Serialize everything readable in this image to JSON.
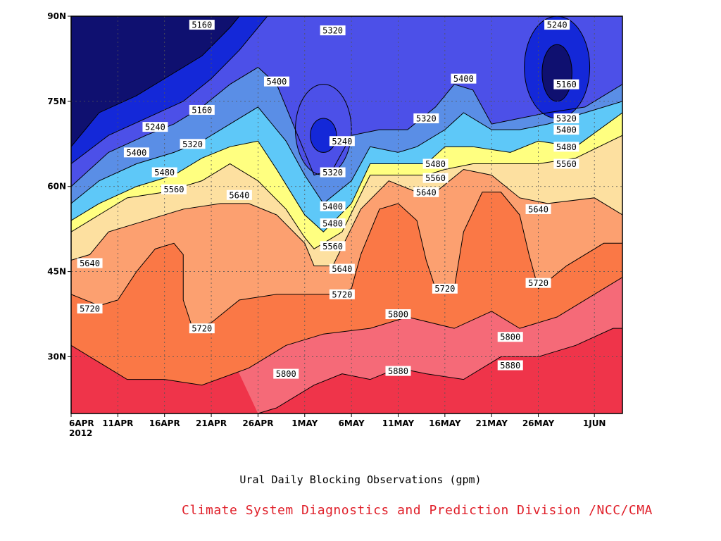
{
  "chart_data": {
    "type": "heatmap",
    "subtype": "filled-contour (time-latitude Hovmoller of 500hPa geopotential height)",
    "title": "Ural Daily Blocking Observations (gpm)",
    "credit": "Climate System Diagnostics and Prediction Division /NCC/CMA",
    "xlabel": "",
    "ylabel": "",
    "x_start_date": "2012-04-06",
    "x_end_date": "2012-06-04",
    "xlim": [
      "2012-04-06",
      "2012-06-04"
    ],
    "ylim": [
      20,
      90
    ],
    "x_ticks": [
      {
        "date": "2012-04-06",
        "label": "6APR",
        "sublabel": "2012"
      },
      {
        "date": "2012-04-11",
        "label": "11APR"
      },
      {
        "date": "2012-04-16",
        "label": "16APR"
      },
      {
        "date": "2012-04-21",
        "label": "21APR"
      },
      {
        "date": "2012-04-26",
        "label": "26APR"
      },
      {
        "date": "2012-05-01",
        "label": "1MAY"
      },
      {
        "date": "2012-05-06",
        "label": "6MAY"
      },
      {
        "date": "2012-05-11",
        "label": "11MAY"
      },
      {
        "date": "2012-05-16",
        "label": "16MAY"
      },
      {
        "date": "2012-05-21",
        "label": "21MAY"
      },
      {
        "date": "2012-05-26",
        "label": "26MAY"
      },
      {
        "date": "2012-06-01",
        "label": "1JUN"
      }
    ],
    "y_ticks": [
      {
        "value": 30,
        "label": "30N"
      },
      {
        "value": 45,
        "label": "45N"
      },
      {
        "value": 60,
        "label": "60N"
      },
      {
        "value": 75,
        "label": "75N"
      },
      {
        "value": 90,
        "label": "90N"
      }
    ],
    "grid": true,
    "levels": [
      5160,
      5240,
      5320,
      5400,
      5480,
      5560,
      5640,
      5720,
      5800,
      5880
    ],
    "band_colors": [
      "#0f1070",
      "#1428d8",
      "#4c50e8",
      "#5a8ee6",
      "#5ec8f8",
      "#ffff80",
      "#fde0a0",
      "#fca070",
      "#fa7846",
      "#f56a78",
      "#ef344a"
    ],
    "contours": [
      {
        "level": 5880,
        "points": [
          [
            "2012-04-26",
            20
          ],
          [
            "2012-04-28",
            21
          ],
          [
            "2012-05-02",
            25
          ],
          [
            "2012-05-05",
            27
          ],
          [
            "2012-05-08",
            26
          ],
          [
            "2012-05-11",
            28
          ],
          [
            "2012-05-14",
            27
          ],
          [
            "2012-05-18",
            26
          ],
          [
            "2012-05-22",
            30
          ],
          [
            "2012-05-26",
            30
          ],
          [
            "2012-05-30",
            32
          ],
          [
            "2012-06-03",
            35
          ],
          [
            "2012-06-04",
            35
          ]
        ]
      },
      {
        "level": 5800,
        "points": [
          [
            "2012-04-06",
            32
          ],
          [
            "2012-04-09",
            29
          ],
          [
            "2012-04-12",
            26
          ],
          [
            "2012-04-16",
            26
          ],
          [
            "2012-04-20",
            25
          ],
          [
            "2012-04-25",
            28
          ],
          [
            "2012-04-29",
            32
          ],
          [
            "2012-05-03",
            34
          ],
          [
            "2012-05-08",
            35
          ],
          [
            "2012-05-12",
            37
          ],
          [
            "2012-05-17",
            35
          ],
          [
            "2012-05-21",
            38
          ],
          [
            "2012-05-24",
            35
          ],
          [
            "2012-05-28",
            37
          ],
          [
            "2012-06-01",
            41
          ],
          [
            "2012-06-04",
            44
          ]
        ]
      },
      {
        "level": 5720,
        "points": [
          [
            "2012-04-06",
            41
          ],
          [
            "2012-04-09",
            39
          ],
          [
            "2012-04-11",
            40
          ],
          [
            "2012-04-13",
            45
          ],
          [
            "2012-04-15",
            49
          ],
          [
            "2012-04-17",
            50
          ],
          [
            "2012-04-18",
            48
          ],
          [
            "2012-04-18",
            40
          ],
          [
            "2012-04-19",
            35
          ],
          [
            "2012-04-21",
            36
          ],
          [
            "2012-04-24",
            40
          ],
          [
            "2012-04-28",
            41
          ],
          [
            "2012-05-01",
            41
          ],
          [
            "2012-05-04",
            41
          ],
          [
            "2012-05-06",
            42
          ],
          [
            "2012-05-07",
            48
          ],
          [
            "2012-05-09",
            56
          ],
          [
            "2012-05-11",
            57
          ],
          [
            "2012-05-13",
            54
          ],
          [
            "2012-05-14",
            47
          ],
          [
            "2012-05-15",
            42
          ],
          [
            "2012-05-17",
            42
          ],
          [
            "2012-05-18",
            52
          ],
          [
            "2012-05-20",
            59
          ],
          [
            "2012-05-22",
            59
          ],
          [
            "2012-05-24",
            55
          ],
          [
            "2012-05-25",
            48
          ],
          [
            "2012-05-26",
            42
          ],
          [
            "2012-05-29",
            46
          ],
          [
            "2012-06-02",
            50
          ],
          [
            "2012-06-04",
            50
          ]
        ]
      },
      {
        "level": 5640,
        "points": [
          [
            "2012-04-06",
            47
          ],
          [
            "2012-04-08",
            48
          ],
          [
            "2012-04-10",
            52
          ],
          [
            "2012-04-14",
            54
          ],
          [
            "2012-04-18",
            56
          ],
          [
            "2012-04-22",
            57
          ],
          [
            "2012-04-25",
            57
          ],
          [
            "2012-04-28",
            55
          ],
          [
            "2012-05-01",
            50
          ],
          [
            "2012-05-02",
            46
          ],
          [
            "2012-05-04",
            46
          ],
          [
            "2012-05-07",
            56
          ],
          [
            "2012-05-10",
            61
          ],
          [
            "2012-05-13",
            59
          ],
          [
            "2012-05-15",
            59
          ],
          [
            "2012-05-18",
            63
          ],
          [
            "2012-05-21",
            62
          ],
          [
            "2012-05-24",
            58
          ],
          [
            "2012-05-27",
            57
          ],
          [
            "2012-06-01",
            58
          ],
          [
            "2012-06-04",
            55
          ]
        ]
      },
      {
        "level": 5560,
        "points": [
          [
            "2012-04-06",
            52
          ],
          [
            "2012-04-09",
            55
          ],
          [
            "2012-04-12",
            58
          ],
          [
            "2012-04-16",
            59
          ],
          [
            "2012-04-20",
            61
          ],
          [
            "2012-04-23",
            64
          ],
          [
            "2012-04-26",
            61
          ],
          [
            "2012-04-29",
            56
          ],
          [
            "2012-05-01",
            51
          ],
          [
            "2012-05-02",
            49
          ],
          [
            "2012-05-05",
            52
          ],
          [
            "2012-05-08",
            62
          ],
          [
            "2012-05-11",
            62
          ],
          [
            "2012-05-14",
            62
          ],
          [
            "2012-05-16",
            63
          ],
          [
            "2012-05-19",
            64
          ],
          [
            "2012-05-23",
            64
          ],
          [
            "2012-05-26",
            64
          ],
          [
            "2012-05-30",
            65
          ],
          [
            "2012-06-04",
            69
          ]
        ]
      },
      {
        "level": 5480,
        "points": [
          [
            "2012-04-06",
            54
          ],
          [
            "2012-04-09",
            57
          ],
          [
            "2012-04-13",
            60
          ],
          [
            "2012-04-17",
            62
          ],
          [
            "2012-04-20",
            65
          ],
          [
            "2012-04-23",
            67
          ],
          [
            "2012-04-26",
            68
          ],
          [
            "2012-04-28",
            63
          ],
          [
            "2012-05-01",
            55
          ],
          [
            "2012-05-03",
            52
          ],
          [
            "2012-05-06",
            57
          ],
          [
            "2012-05-08",
            64
          ],
          [
            "2012-05-11",
            64
          ],
          [
            "2012-05-14",
            64
          ],
          [
            "2012-05-16",
            67
          ],
          [
            "2012-05-19",
            67
          ],
          [
            "2012-05-23",
            66
          ],
          [
            "2012-05-26",
            68
          ],
          [
            "2012-05-30",
            67
          ],
          [
            "2012-06-04",
            73
          ]
        ]
      },
      {
        "level": 5400,
        "points": [
          [
            "2012-04-06",
            57
          ],
          [
            "2012-04-09",
            61
          ],
          [
            "2012-04-13",
            64
          ],
          [
            "2012-04-17",
            66
          ],
          [
            "2012-04-20",
            68
          ],
          [
            "2012-04-23",
            71
          ],
          [
            "2012-04-26",
            74
          ],
          [
            "2012-04-29",
            68
          ],
          [
            "2012-05-01",
            62
          ],
          [
            "2012-05-03",
            57
          ],
          [
            "2012-05-06",
            61
          ],
          [
            "2012-05-08",
            67
          ],
          [
            "2012-05-11",
            66
          ],
          [
            "2012-05-13",
            67
          ],
          [
            "2012-05-16",
            70
          ],
          [
            "2012-05-18",
            73
          ],
          [
            "2012-05-21",
            70
          ],
          [
            "2012-05-24",
            70
          ],
          [
            "2012-05-27",
            71
          ],
          [
            "2012-05-31",
            73
          ],
          [
            "2012-06-04",
            75
          ]
        ]
      },
      {
        "level": 5320,
        "points": [
          [
            "2012-04-06",
            60
          ],
          [
            "2012-04-10",
            66
          ],
          [
            "2012-04-14",
            69
          ],
          [
            "2012-04-17",
            71
          ],
          [
            "2012-04-20",
            74
          ],
          [
            "2012-04-23",
            78
          ],
          [
            "2012-04-26",
            81
          ],
          [
            "2012-04-28",
            78
          ],
          [
            "2012-04-30",
            70
          ],
          [
            "2012-05-02",
            62
          ],
          [
            "2012-05-04",
            63
          ],
          [
            "2012-05-06",
            69
          ],
          [
            "2012-05-09",
            70
          ],
          [
            "2012-05-12",
            70
          ],
          [
            "2012-05-15",
            74
          ],
          [
            "2012-05-17",
            78
          ],
          [
            "2012-05-19",
            77
          ],
          [
            "2012-05-21",
            71
          ],
          [
            "2012-05-24",
            72
          ],
          [
            "2012-05-27",
            73
          ],
          [
            "2012-05-31",
            74
          ],
          [
            "2012-06-04",
            78
          ]
        ]
      },
      {
        "level": 5240,
        "points": [
          [
            "2012-04-06",
            64
          ],
          [
            "2012-04-10",
            69
          ],
          [
            "2012-04-14",
            72
          ],
          [
            "2012-04-18",
            75
          ],
          [
            "2012-04-21",
            79
          ],
          [
            "2012-04-24",
            84
          ],
          [
            "2012-04-27",
            90
          ]
        ]
      },
      {
        "level": 5160,
        "points": [
          [
            "2012-04-06",
            67
          ],
          [
            "2012-04-09",
            73
          ],
          [
            "2012-04-13",
            76
          ],
          [
            "2012-04-16",
            79
          ],
          [
            "2012-04-20",
            83
          ],
          [
            "2012-04-23",
            88
          ],
          [
            "2012-04-24",
            90
          ]
        ]
      }
    ],
    "closed_contours": [
      {
        "level": 5320,
        "center": [
          "2012-05-03",
          70
        ],
        "rx_days": 3,
        "ry_deg": 8
      },
      {
        "level": 5240,
        "center": [
          "2012-05-03",
          69
        ],
        "rx_days": 1.4,
        "ry_deg": 3
      },
      {
        "level": 5240,
        "center": [
          "2012-05-28",
          81
        ],
        "rx_days": 3.5,
        "ry_deg": 9
      },
      {
        "level": 5160,
        "center": [
          "2012-05-28",
          80
        ],
        "rx_days": 1.6,
        "ry_deg": 5
      }
    ],
    "contour_labels": [
      {
        "text": "5160",
        "date": "2012-04-20",
        "lat": 88.5
      },
      {
        "text": "5160",
        "date": "2012-04-20",
        "lat": 73.5
      },
      {
        "text": "5240",
        "date": "2012-04-15",
        "lat": 70.5
      },
      {
        "text": "5320",
        "date": "2012-04-19",
        "lat": 67.5
      },
      {
        "text": "5400",
        "date": "2012-04-13",
        "lat": 66
      },
      {
        "text": "5480",
        "date": "2012-04-16",
        "lat": 62.5
      },
      {
        "text": "5560",
        "date": "2012-04-17",
        "lat": 59.5
      },
      {
        "text": "5640",
        "date": "2012-04-24",
        "lat": 58.5
      },
      {
        "text": "5640",
        "date": "2012-04-08",
        "lat": 46.5
      },
      {
        "text": "5720",
        "date": "2012-04-08",
        "lat": 38.5
      },
      {
        "text": "5720",
        "date": "2012-04-20",
        "lat": 35
      },
      {
        "text": "5800",
        "date": "2012-04-29",
        "lat": 27
      },
      {
        "text": "5400",
        "date": "2012-04-28",
        "lat": 78.5
      },
      {
        "text": "5320",
        "date": "2012-05-04",
        "lat": 87.5
      },
      {
        "text": "5240",
        "date": "2012-05-05",
        "lat": 68
      },
      {
        "text": "5320",
        "date": "2012-05-04",
        "lat": 62.5
      },
      {
        "text": "5400",
        "date": "2012-05-04",
        "lat": 56.5
      },
      {
        "text": "5480",
        "date": "2012-05-04",
        "lat": 53.5
      },
      {
        "text": "5560",
        "date": "2012-05-04",
        "lat": 49.5
      },
      {
        "text": "5640",
        "date": "2012-05-05",
        "lat": 45.5
      },
      {
        "text": "5720",
        "date": "2012-05-05",
        "lat": 41
      },
      {
        "text": "5800",
        "date": "2012-05-11",
        "lat": 37.5
      },
      {
        "text": "5880",
        "date": "2012-05-11",
        "lat": 27.5
      },
      {
        "text": "5320",
        "date": "2012-05-14",
        "lat": 72
      },
      {
        "text": "5480",
        "date": "2012-05-15",
        "lat": 64
      },
      {
        "text": "5560",
        "date": "2012-05-15",
        "lat": 61.5
      },
      {
        "text": "5640",
        "date": "2012-05-14",
        "lat": 59
      },
      {
        "text": "5720",
        "date": "2012-05-16",
        "lat": 42
      },
      {
        "text": "5400",
        "date": "2012-05-18",
        "lat": 79
      },
      {
        "text": "5800",
        "date": "2012-05-23",
        "lat": 33.5
      },
      {
        "text": "5880",
        "date": "2012-05-23",
        "lat": 28.5
      },
      {
        "text": "5640",
        "date": "2012-05-26",
        "lat": 56
      },
      {
        "text": "5720",
        "date": "2012-05-26",
        "lat": 43
      },
      {
        "text": "5240",
        "date": "2012-05-28",
        "lat": 88.5
      },
      {
        "text": "5160",
        "date": "2012-05-29",
        "lat": 78
      },
      {
        "text": "5320",
        "date": "2012-05-29",
        "lat": 72
      },
      {
        "text": "5400",
        "date": "2012-05-29",
        "lat": 70
      },
      {
        "text": "5480",
        "date": "2012-05-29",
        "lat": 67
      },
      {
        "text": "5560",
        "date": "2012-05-29",
        "lat": 64
      }
    ]
  }
}
